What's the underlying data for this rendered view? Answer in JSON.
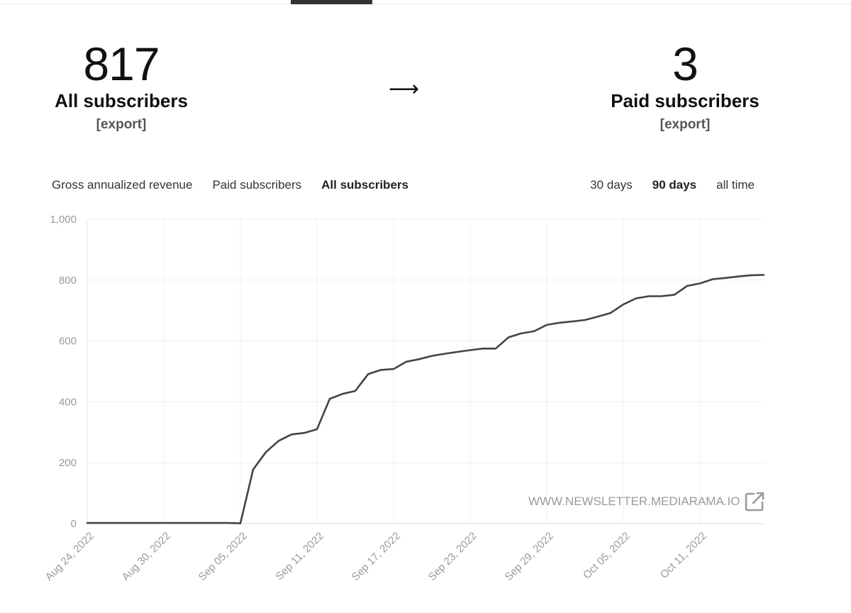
{
  "summary": {
    "all_subscribers": {
      "value": "817",
      "label": "All subscribers",
      "export_label": "[export]"
    },
    "arrow": "⟶",
    "paid_subscribers": {
      "value": "3",
      "label": "Paid subscribers",
      "export_label": "[export]"
    }
  },
  "metric_tabs": [
    {
      "label": "Gross annualized revenue",
      "active": false
    },
    {
      "label": "Paid subscribers",
      "active": false
    },
    {
      "label": "All subscribers",
      "active": true
    }
  ],
  "range_tabs": [
    {
      "label": "30 days",
      "active": false
    },
    {
      "label": "90 days",
      "active": true
    },
    {
      "label": "all time",
      "active": false
    }
  ],
  "watermark": {
    "text": "WWW.NEWSLETTER.MEDIARAMA.IO",
    "icon": "external-link-icon"
  },
  "colors": {
    "line": "#444444",
    "grid": "#efefef",
    "axis_text": "#9a9a9a",
    "watermark": "#9a9a9a"
  },
  "chart_data": {
    "type": "line",
    "title": "",
    "xlabel": "",
    "ylabel": "",
    "x_ticks": [
      "Aug 24, 2022",
      "Aug 30, 2022",
      "Sep 05, 2022",
      "Sep 11, 2022",
      "Sep 17, 2022",
      "Sep 23, 2022",
      "Sep 29, 2022",
      "Oct 05, 2022",
      "Oct 11, 2022"
    ],
    "y_ticks": [
      "0",
      "200",
      "400",
      "600",
      "800",
      "1,000"
    ],
    "xlim": [
      "2022-08-24",
      "2022-10-16"
    ],
    "ylim": [
      0,
      1000
    ],
    "grid": true,
    "series": [
      {
        "values": [
          [
            "2022-08-24",
            2
          ],
          [
            "2022-08-30",
            2
          ],
          [
            "2022-09-04",
            2
          ],
          [
            "2022-09-05",
            1
          ],
          [
            "2022-09-06",
            178
          ],
          [
            "2022-09-07",
            235
          ],
          [
            "2022-09-08",
            272
          ],
          [
            "2022-09-09",
            293
          ],
          [
            "2022-09-10",
            298
          ],
          [
            "2022-09-11",
            310
          ],
          [
            "2022-09-12",
            410
          ],
          [
            "2022-09-13",
            426
          ],
          [
            "2022-09-14",
            436
          ],
          [
            "2022-09-15",
            491
          ],
          [
            "2022-09-16",
            505
          ],
          [
            "2022-09-17",
            508
          ],
          [
            "2022-09-18",
            532
          ],
          [
            "2022-09-19",
            540
          ],
          [
            "2022-09-20",
            551
          ],
          [
            "2022-09-21",
            558
          ],
          [
            "2022-09-22",
            564
          ],
          [
            "2022-09-23",
            570
          ],
          [
            "2022-09-24",
            575
          ],
          [
            "2022-09-25",
            575
          ],
          [
            "2022-09-26",
            612
          ],
          [
            "2022-09-27",
            625
          ],
          [
            "2022-09-28",
            632
          ],
          [
            "2022-09-29",
            653
          ],
          [
            "2022-09-30",
            660
          ],
          [
            "2022-10-01",
            664
          ],
          [
            "2022-10-02",
            669
          ],
          [
            "2022-10-03",
            680
          ],
          [
            "2022-10-04",
            692
          ],
          [
            "2022-10-05",
            720
          ],
          [
            "2022-10-06",
            740
          ],
          [
            "2022-10-07",
            747
          ],
          [
            "2022-10-08",
            747
          ],
          [
            "2022-10-09",
            752
          ],
          [
            "2022-10-10",
            781
          ],
          [
            "2022-10-11",
            789
          ],
          [
            "2022-10-12",
            803
          ],
          [
            "2022-10-13",
            807
          ],
          [
            "2022-10-14",
            812
          ],
          [
            "2022-10-15",
            816
          ],
          [
            "2022-10-16",
            817
          ]
        ]
      }
    ]
  }
}
